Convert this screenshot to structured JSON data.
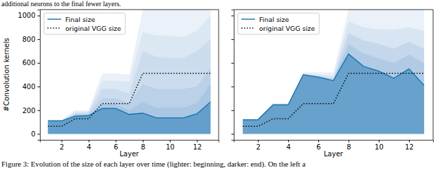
{
  "text_above": "additional neurons to the final fewer layers.",
  "caption": "Figure 3: Evolution of the size of each layer over time (lighter: beginning, darker: end). On the left a",
  "chart_data": [
    {
      "type": "area",
      "x_label": "Layer",
      "y_label": "#Convolution kernels",
      "x": [
        1,
        2,
        3,
        4,
        5,
        6,
        7,
        8,
        9,
        10,
        11,
        12,
        13
      ],
      "xlim": [
        0.4,
        13.6
      ],
      "ylim": [
        -50,
        1050
      ],
      "xticks": [
        2,
        4,
        6,
        8,
        10,
        12
      ],
      "yticks": [
        0,
        200,
        400,
        600,
        800,
        1000
      ],
      "grid": false,
      "legend": "upper left",
      "series": [
        {
          "color": "#eaf1f8",
          "values": [
            120,
            120,
            200,
            200,
            510,
            510,
            500,
            1050,
            1050,
            1050,
            1050,
            1050,
            1050
          ]
        },
        {
          "color": "#dbe7f3",
          "values": [
            115,
            115,
            185,
            190,
            450,
            450,
            440,
            860,
            830,
            830,
            820,
            870,
            1000
          ]
        },
        {
          "color": "#cbdcee",
          "values": [
            112,
            112,
            175,
            180,
            380,
            380,
            340,
            700,
            650,
            640,
            640,
            700,
            800
          ]
        },
        {
          "color": "#bad1e8",
          "values": [
            110,
            110,
            165,
            170,
            300,
            300,
            260,
            420,
            380,
            380,
            380,
            400,
            560
          ]
        },
        {
          "color": "#a9c6e2",
          "values": [
            110,
            110,
            155,
            160,
            250,
            250,
            200,
            270,
            220,
            220,
            220,
            260,
            420
          ]
        },
        {
          "name": "Final size",
          "color": "#1f77b4",
          "line_style": "solid",
          "values": [
            110,
            110,
            150,
            155,
            215,
            215,
            165,
            175,
            135,
            135,
            135,
            170,
            270
          ]
        },
        {
          "name": "original VGG size",
          "type": "line",
          "color": "#000000",
          "line_style": "dotted",
          "values": [
            64,
            64,
            128,
            128,
            256,
            256,
            256,
            512,
            512,
            512,
            512,
            512,
            512
          ]
        }
      ]
    },
    {
      "type": "area",
      "x_label": "Layer",
      "x": [
        1,
        2,
        3,
        4,
        5,
        6,
        7,
        8,
        9,
        10,
        11,
        12,
        13
      ],
      "xlim": [
        0.4,
        13.6
      ],
      "ylim": [
        -50,
        1050
      ],
      "xticks": [
        2,
        4,
        6,
        8,
        10,
        12
      ],
      "yticks": [
        0,
        200,
        400,
        600,
        800,
        1000
      ],
      "grid": false,
      "legend": "upper left",
      "tick_labels": "x",
      "series": [
        {
          "color": "#eaf1f8",
          "values": [
            125,
            125,
            260,
            260,
            520,
            520,
            520,
            1050,
            1050,
            1050,
            1050,
            1050,
            1050
          ]
        },
        {
          "color": "#d8e5f2",
          "values": [
            122,
            122,
            255,
            255,
            510,
            500,
            490,
            950,
            900,
            880,
            880,
            900,
            870
          ]
        },
        {
          "color": "#c5d8eb",
          "values": [
            121,
            121,
            250,
            250,
            505,
            490,
            470,
            850,
            790,
            760,
            720,
            780,
            720
          ]
        },
        {
          "color": "#b1cbe4",
          "values": [
            120,
            120,
            248,
            248,
            502,
            485,
            460,
            760,
            680,
            640,
            600,
            670,
            600
          ]
        },
        {
          "name": "Final size",
          "color": "#1f77b4",
          "line_style": "solid",
          "values": [
            120,
            120,
            245,
            245,
            500,
            480,
            450,
            675,
            570,
            530,
            470,
            550,
            410
          ]
        },
        {
          "name": "original VGG size",
          "type": "line",
          "color": "#000000",
          "line_style": "dotted",
          "values": [
            64,
            64,
            128,
            128,
            256,
            256,
            256,
            512,
            512,
            512,
            512,
            512,
            512
          ]
        }
      ]
    }
  ]
}
